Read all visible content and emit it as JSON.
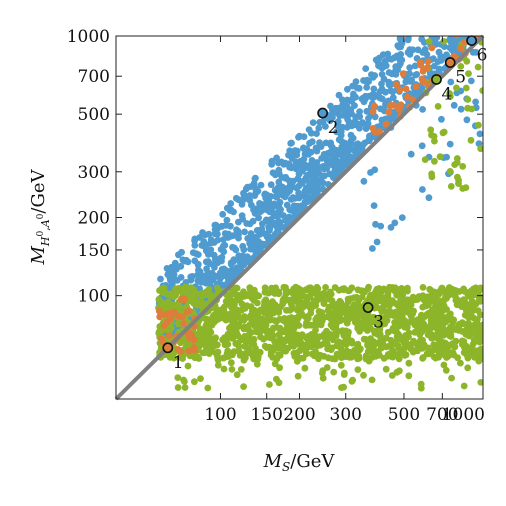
{
  "chart_data": {
    "type": "scatter",
    "title": "",
    "xlabel": "M_S/GeV",
    "ylabel": "M_{H^0,A^0}/GeV",
    "xscale": "log",
    "yscale": "log",
    "xlim": [
      40,
      1000
    ],
    "ylim": [
      40,
      1000
    ],
    "grid": false,
    "legend": "none",
    "x_ticks": [
      {
        "value": 100,
        "label": "100"
      },
      {
        "value": 150,
        "label": "150"
      },
      {
        "value": 200,
        "label": "200"
      },
      {
        "value": 300,
        "label": "300"
      },
      {
        "value": 500,
        "label": "500"
      },
      {
        "value": 700,
        "label": "700"
      },
      {
        "value": 1000,
        "label": "1000"
      }
    ],
    "y_ticks": [
      {
        "value": 100,
        "label": "100"
      },
      {
        "value": 150,
        "label": "150"
      },
      {
        "value": 200,
        "label": "200"
      },
      {
        "value": 300,
        "label": "300"
      },
      {
        "value": 500,
        "label": "500"
      },
      {
        "value": 700,
        "label": "700"
      },
      {
        "value": 1000,
        "label": "1000"
      }
    ],
    "diagonal": {
      "x": [
        40,
        1000
      ],
      "y": [
        40,
        1000
      ],
      "color": "#808080"
    },
    "colors": {
      "blue": "#4f9bd0",
      "green": "#8db52a",
      "orange": "#de7d3b"
    },
    "series": [
      {
        "color": "#4f9bd0",
        "regions": [
          {
            "n": 1250,
            "x": [
              58,
              1000
            ],
            "ratio": [
              1.04,
              2.1
            ],
            "weight": "near-diagonal"
          },
          {
            "n": 40,
            "x": [
              350,
              1000
            ],
            "ratio": [
              0.38,
              1.0
            ],
            "weight": "uniform"
          }
        ]
      },
      {
        "color": "#8db52a",
        "regions": [
          {
            "n": 1500,
            "x": [
              58,
              1000
            ],
            "y": [
              57,
              108
            ]
          },
          {
            "n": 60,
            "x": [
              60,
              1000
            ],
            "y": [
              44,
              57
            ]
          },
          {
            "n": 50,
            "x": [
              580,
              1000
            ],
            "y": [
              250,
              1000
            ]
          }
        ]
      },
      {
        "color": "#de7d3b",
        "regions": [
          {
            "n": 40,
            "x": [
              57,
              80
            ],
            "y": [
              60,
              100
            ]
          },
          {
            "n": 55,
            "x": [
              350,
              1000
            ],
            "ratio": [
              1.0,
              1.45
            ],
            "weight": "uniform"
          }
        ]
      }
    ],
    "benchmarks": [
      {
        "label": "1",
        "x": 63,
        "y": 63,
        "fill": "#de7d3b"
      },
      {
        "label": "2",
        "x": 245,
        "y": 505,
        "fill": "#4f9bd0"
      },
      {
        "label": "3",
        "x": 365,
        "y": 90,
        "fill": "#8db52a"
      },
      {
        "label": "4",
        "x": 665,
        "y": 680,
        "fill": "#8db52a"
      },
      {
        "label": "5",
        "x": 750,
        "y": 790,
        "fill": "#de7d3b"
      },
      {
        "label": "6",
        "x": 905,
        "y": 960,
        "fill": "#4f9bd0"
      }
    ]
  }
}
